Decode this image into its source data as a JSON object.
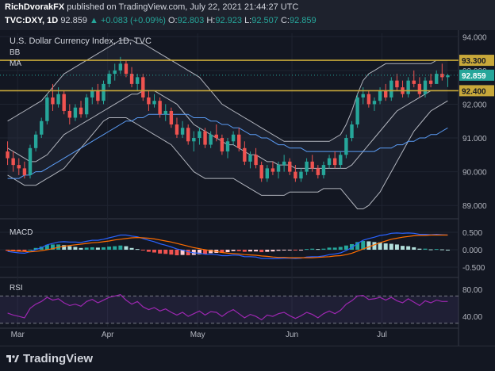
{
  "header": {
    "author": "RichDvorakFX",
    "published": "published on TradingView.com, July 22, 2021 21:44:27 UTC",
    "symbol": "TVC:DXY, 1D",
    "last": "92.859",
    "change_arrow": "▲",
    "change": "+0.083 (+0.09%)",
    "o_label": "O:",
    "o": "92.803",
    "h_label": "H:",
    "h": "92.923",
    "l_label": "L:",
    "l": "92.507",
    "c_label": "C:",
    "c": "92.859"
  },
  "footer": {
    "brand": "TradingView"
  },
  "colors": {
    "up": "#26a69a",
    "down": "#ef5350",
    "level": "#c8a83a",
    "bb": "#b2b5be",
    "ma": "#5b9cf5",
    "macd": "#2962ff",
    "signal": "#ff6d00",
    "rsi": "#9c27b0"
  },
  "chart_data": [
    {
      "type": "candlestick",
      "title": "U.S. Dollar Currency Index, 1D, TVC",
      "legend": [
        "BB",
        "MA"
      ],
      "ylim": [
        88.7,
        94.1
      ],
      "yticks": [
        "94.000",
        "93.000",
        "92.000",
        "91.000",
        "90.000",
        "89.000"
      ],
      "x_labels": [
        "Mar",
        "Apr",
        "May",
        "Jun",
        "Jul"
      ],
      "levels": [
        {
          "label": "93.300",
          "value": 93.3
        },
        {
          "label": "92.400",
          "value": 92.4
        }
      ],
      "last_label": "92.859",
      "last_value": 92.859,
      "ohlc": [
        [
          90.6,
          90.9,
          90.2,
          90.4
        ],
        [
          90.4,
          90.6,
          90.0,
          90.2
        ],
        [
          90.2,
          90.4,
          89.9,
          90.1
        ],
        [
          90.1,
          90.3,
          89.8,
          89.9
        ],
        [
          89.9,
          90.8,
          89.8,
          90.7
        ],
        [
          90.7,
          91.2,
          90.6,
          91.1
        ],
        [
          91.1,
          91.6,
          91.0,
          91.5
        ],
        [
          91.5,
          92.3,
          91.4,
          92.2
        ],
        [
          92.2,
          92.6,
          91.8,
          92.0
        ],
        [
          92.0,
          92.5,
          91.9,
          92.3
        ],
        [
          92.3,
          92.4,
          91.7,
          91.8
        ],
        [
          91.8,
          92.0,
          91.4,
          91.6
        ],
        [
          91.6,
          92.0,
          91.5,
          91.9
        ],
        [
          91.9,
          92.1,
          91.6,
          91.7
        ],
        [
          91.7,
          92.3,
          91.6,
          92.2
        ],
        [
          92.2,
          92.5,
          92.0,
          92.4
        ],
        [
          92.4,
          92.6,
          92.0,
          92.1
        ],
        [
          92.1,
          92.7,
          92.0,
          92.6
        ],
        [
          92.6,
          93.0,
          92.5,
          92.9
        ],
        [
          92.9,
          93.2,
          92.7,
          93.0
        ],
        [
          93.0,
          93.4,
          92.9,
          93.2
        ],
        [
          93.2,
          93.3,
          92.8,
          92.9
        ],
        [
          92.9,
          93.1,
          92.5,
          92.6
        ],
        [
          92.6,
          92.9,
          92.4,
          92.8
        ],
        [
          92.8,
          92.9,
          92.1,
          92.2
        ],
        [
          92.2,
          92.4,
          91.8,
          92.0
        ],
        [
          92.0,
          92.3,
          91.9,
          92.1
        ],
        [
          92.1,
          92.2,
          91.6,
          91.7
        ],
        [
          91.7,
          92.0,
          91.5,
          91.8
        ],
        [
          91.8,
          91.9,
          91.3,
          91.4
        ],
        [
          91.4,
          91.6,
          91.0,
          91.1
        ],
        [
          91.1,
          91.5,
          91.0,
          91.3
        ],
        [
          91.3,
          91.4,
          90.8,
          90.9
        ],
        [
          90.9,
          91.2,
          90.6,
          91.0
        ],
        [
          91.0,
          91.3,
          90.8,
          91.2
        ],
        [
          91.2,
          91.3,
          90.7,
          90.8
        ],
        [
          90.8,
          91.2,
          90.7,
          91.1
        ],
        [
          91.1,
          91.4,
          90.9,
          91.0
        ],
        [
          91.0,
          91.1,
          90.5,
          90.6
        ],
        [
          90.6,
          91.0,
          90.4,
          90.9
        ],
        [
          90.9,
          91.2,
          90.8,
          91.1
        ],
        [
          91.1,
          91.3,
          90.6,
          90.7
        ],
        [
          90.7,
          90.9,
          90.2,
          90.3
        ],
        [
          90.3,
          90.6,
          90.1,
          90.5
        ],
        [
          90.5,
          90.7,
          90.1,
          90.2
        ],
        [
          90.2,
          90.3,
          89.7,
          89.8
        ],
        [
          89.8,
          90.2,
          89.7,
          90.1
        ],
        [
          90.1,
          90.3,
          89.9,
          90.0
        ],
        [
          90.0,
          90.3,
          89.8,
          90.2
        ],
        [
          90.2,
          90.5,
          90.0,
          90.3
        ],
        [
          90.3,
          90.4,
          89.9,
          90.0
        ],
        [
          90.0,
          90.2,
          89.7,
          89.8
        ],
        [
          89.8,
          90.1,
          89.7,
          90.0
        ],
        [
          90.0,
          90.4,
          89.9,
          90.3
        ],
        [
          90.3,
          90.5,
          90.0,
          90.1
        ],
        [
          90.1,
          90.2,
          89.8,
          89.9
        ],
        [
          89.9,
          90.3,
          89.8,
          90.2
        ],
        [
          90.2,
          90.5,
          90.1,
          90.4
        ],
        [
          90.4,
          90.6,
          90.1,
          90.2
        ],
        [
          90.2,
          90.6,
          90.1,
          90.5
        ],
        [
          90.5,
          91.1,
          90.4,
          91.0
        ],
        [
          91.0,
          91.5,
          90.9,
          91.4
        ],
        [
          91.4,
          92.3,
          91.3,
          92.2
        ],
        [
          92.2,
          92.5,
          92.0,
          92.3
        ],
        [
          92.3,
          92.4,
          91.9,
          92.0
        ],
        [
          92.0,
          92.2,
          91.8,
          92.1
        ],
        [
          92.1,
          92.5,
          92.0,
          92.4
        ],
        [
          92.4,
          92.6,
          92.1,
          92.2
        ],
        [
          92.2,
          92.8,
          92.1,
          92.7
        ],
        [
          92.7,
          92.9,
          92.4,
          92.5
        ],
        [
          92.5,
          92.7,
          92.2,
          92.3
        ],
        [
          92.3,
          92.8,
          92.2,
          92.7
        ],
        [
          92.7,
          93.0,
          92.5,
          92.6
        ],
        [
          92.6,
          92.8,
          92.2,
          92.3
        ],
        [
          92.3,
          92.8,
          92.2,
          92.7
        ],
        [
          92.7,
          92.9,
          92.5,
          92.6
        ],
        [
          92.6,
          93.0,
          92.6,
          92.9
        ],
        [
          92.9,
          93.2,
          92.7,
          92.8
        ],
        [
          92.8,
          92.9,
          92.507,
          92.859
        ]
      ],
      "bb_upper": [
        91.5,
        91.6,
        91.7,
        91.8,
        91.9,
        92.0,
        92.1,
        92.3,
        92.5,
        92.7,
        92.9,
        93.0,
        93.1,
        93.2,
        93.3,
        93.4,
        93.5,
        93.6,
        93.7,
        93.8,
        93.9,
        93.9,
        93.9,
        93.8,
        93.8,
        93.7,
        93.6,
        93.5,
        93.4,
        93.3,
        93.2,
        93.1,
        93.0,
        92.9,
        92.8,
        92.6,
        92.4,
        92.2,
        92.0,
        91.9,
        91.8,
        91.7,
        91.6,
        91.5,
        91.4,
        91.3,
        91.2,
        91.1,
        91.0,
        90.9,
        90.9,
        90.9,
        90.9,
        90.9,
        90.9,
        90.9,
        90.9,
        90.9,
        91.0,
        91.1,
        91.4,
        91.8,
        92.3,
        92.7,
        92.9,
        93.0,
        93.1,
        93.2,
        93.2,
        93.2,
        93.2,
        93.2,
        93.2,
        93.2,
        93.2,
        93.2,
        93.3,
        93.3,
        93.3
      ],
      "bb_lower": [
        89.9,
        89.8,
        89.7,
        89.6,
        89.6,
        89.6,
        89.7,
        89.8,
        89.9,
        90.0,
        90.1,
        90.3,
        90.5,
        90.7,
        90.9,
        91.1,
        91.3,
        91.5,
        91.6,
        91.6,
        91.6,
        91.6,
        91.5,
        91.4,
        91.3,
        91.2,
        91.1,
        91.0,
        90.9,
        90.8,
        90.6,
        90.4,
        90.2,
        90.0,
        89.9,
        89.8,
        89.8,
        89.8,
        89.8,
        89.8,
        89.8,
        89.7,
        89.6,
        89.5,
        89.4,
        89.3,
        89.3,
        89.3,
        89.3,
        89.3,
        89.4,
        89.4,
        89.4,
        89.4,
        89.4,
        89.4,
        89.5,
        89.5,
        89.5,
        89.5,
        89.3,
        89.1,
        88.9,
        88.9,
        89.0,
        89.2,
        89.4,
        89.7,
        90.0,
        90.3,
        90.6,
        90.9,
        91.2,
        91.4,
        91.6,
        91.8,
        91.9,
        92.0,
        92.1
      ],
      "ma_fast": [
        90.7,
        90.6,
        90.5,
        90.4,
        90.3,
        90.3,
        90.4,
        90.5,
        90.7,
        90.9,
        91.1,
        91.2,
        91.3,
        91.4,
        91.5,
        91.6,
        91.7,
        91.8,
        91.9,
        92.0,
        92.1,
        92.2,
        92.3,
        92.3,
        92.4,
        92.4,
        92.4,
        92.3,
        92.2,
        92.1,
        92.0,
        91.8,
        91.6,
        91.4,
        91.3,
        91.2,
        91.1,
        91.0,
        90.9,
        90.8,
        90.8,
        90.7,
        90.6,
        90.5,
        90.5,
        90.4,
        90.3,
        90.3,
        90.2,
        90.2,
        90.2,
        90.1,
        90.1,
        90.1,
        90.1,
        90.1,
        90.1,
        90.1,
        90.1,
        90.1,
        90.1,
        90.2,
        90.4,
        90.6,
        90.8,
        91.0,
        91.2,
        91.4,
        91.6,
        91.8,
        91.9,
        92.0,
        92.1,
        92.2,
        92.3,
        92.4,
        92.4,
        92.4,
        92.4
      ],
      "ma_slow": [
        89.8,
        89.8,
        89.8,
        89.9,
        89.9,
        90.0,
        90.0,
        90.1,
        90.2,
        90.3,
        90.4,
        90.5,
        90.6,
        90.7,
        90.8,
        90.9,
        91.0,
        91.1,
        91.2,
        91.3,
        91.4,
        91.5,
        91.5,
        91.6,
        91.6,
        91.7,
        91.7,
        91.7,
        91.7,
        91.7,
        91.7,
        91.7,
        91.7,
        91.6,
        91.6,
        91.6,
        91.5,
        91.5,
        91.4,
        91.4,
        91.3,
        91.3,
        91.2,
        91.1,
        91.1,
        91.0,
        91.0,
        90.9,
        90.8,
        90.8,
        90.7,
        90.7,
        90.7,
        90.6,
        90.6,
        90.6,
        90.6,
        90.6,
        90.6,
        90.6,
        90.6,
        90.6,
        90.6,
        90.6,
        90.6,
        90.6,
        90.7,
        90.7,
        90.7,
        90.8,
        90.8,
        90.9,
        90.9,
        91.0,
        91.0,
        91.1,
        91.1,
        91.2,
        91.3
      ]
    },
    {
      "type": "macd",
      "label": "MACD",
      "ylim": [
        -0.75,
        0.75
      ],
      "yticks": [
        "0.500",
        "0.000",
        "-0.500"
      ],
      "macd": [
        -0.05,
        -0.07,
        -0.09,
        -0.1,
        -0.06,
        0.0,
        0.06,
        0.14,
        0.18,
        0.22,
        0.23,
        0.22,
        0.22,
        0.21,
        0.24,
        0.27,
        0.27,
        0.3,
        0.34,
        0.38,
        0.42,
        0.42,
        0.39,
        0.37,
        0.32,
        0.27,
        0.23,
        0.17,
        0.13,
        0.08,
        0.02,
        -0.01,
        -0.06,
        -0.09,
        -0.1,
        -0.13,
        -0.13,
        -0.14,
        -0.17,
        -0.17,
        -0.15,
        -0.16,
        -0.2,
        -0.2,
        -0.21,
        -0.25,
        -0.25,
        -0.26,
        -0.25,
        -0.24,
        -0.24,
        -0.25,
        -0.24,
        -0.21,
        -0.2,
        -0.2,
        -0.18,
        -0.14,
        -0.12,
        -0.09,
        -0.02,
        0.06,
        0.18,
        0.27,
        0.32,
        0.36,
        0.41,
        0.43,
        0.47,
        0.48,
        0.47,
        0.48,
        0.47,
        0.44,
        0.44,
        0.43,
        0.44,
        0.43,
        0.42
      ],
      "signal": [
        -0.02,
        -0.03,
        -0.04,
        -0.05,
        -0.06,
        -0.05,
        -0.03,
        0.0,
        0.03,
        0.07,
        0.1,
        0.12,
        0.14,
        0.16,
        0.18,
        0.2,
        0.21,
        0.23,
        0.25,
        0.28,
        0.3,
        0.32,
        0.34,
        0.35,
        0.34,
        0.33,
        0.31,
        0.28,
        0.25,
        0.22,
        0.18,
        0.14,
        0.1,
        0.06,
        0.03,
        0.0,
        -0.03,
        -0.05,
        -0.08,
        -0.1,
        -0.11,
        -0.12,
        -0.14,
        -0.15,
        -0.16,
        -0.18,
        -0.19,
        -0.21,
        -0.22,
        -0.22,
        -0.23,
        -0.23,
        -0.23,
        -0.23,
        -0.23,
        -0.22,
        -0.21,
        -0.2,
        -0.18,
        -0.17,
        -0.14,
        -0.1,
        -0.04,
        0.02,
        0.08,
        0.14,
        0.2,
        0.25,
        0.3,
        0.33,
        0.36,
        0.38,
        0.4,
        0.41,
        0.41,
        0.42,
        0.42,
        0.42,
        0.42
      ]
    },
    {
      "type": "rsi",
      "label": "RSI",
      "ylim": [
        25,
        95
      ],
      "yticks": [
        "80.00",
        "40.00"
      ],
      "bands": [
        70,
        30
      ],
      "values": [
        45,
        42,
        40,
        38,
        52,
        58,
        62,
        68,
        64,
        66,
        60,
        56,
        58,
        55,
        62,
        65,
        60,
        64,
        68,
        70,
        72,
        64,
        58,
        62,
        54,
        50,
        53,
        48,
        51,
        46,
        42,
        46,
        40,
        44,
        48,
        42,
        47,
        46,
        40,
        46,
        50,
        44,
        38,
        43,
        40,
        35,
        42,
        40,
        44,
        46,
        41,
        37,
        41,
        46,
        43,
        38,
        44,
        48,
        44,
        49,
        58,
        63,
        70,
        71,
        65,
        66,
        68,
        64,
        68,
        63,
        60,
        66,
        61,
        56,
        63,
        60,
        64,
        62,
        62
      ]
    }
  ]
}
